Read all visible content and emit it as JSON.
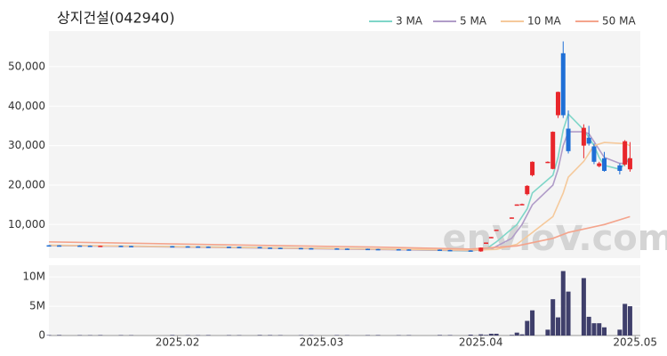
{
  "chart_data": {
    "type": "candlestick",
    "title": "상지건설(042940)",
    "watermark": "enVioV.com",
    "up_color": "#e8262b",
    "down_color": "#1f6fd6",
    "xlim": [
      7,
      122
    ],
    "xticks": [
      {
        "value": 32,
        "label": "2025.02"
      },
      {
        "value": 60,
        "label": "2025.03"
      },
      {
        "value": 91,
        "label": "2025.04"
      },
      {
        "value": 121,
        "label": "2025.05"
      }
    ],
    "ylim": [
      1500,
      59000
    ],
    "yticks": [
      {
        "value": 10000,
        "label": "10,000"
      },
      {
        "value": 20000,
        "label": "20,000"
      },
      {
        "value": 30000,
        "label": "30,000"
      },
      {
        "value": 40000,
        "label": "40,000"
      },
      {
        "value": 50000,
        "label": "50,000"
      }
    ],
    "grid": true,
    "legend": "top-right",
    "x": [
      7,
      9,
      13,
      15,
      17,
      21,
      23,
      31,
      34,
      36,
      38,
      42,
      44,
      48,
      50,
      52,
      56,
      58,
      63,
      65,
      69,
      71,
      75,
      77,
      83,
      85,
      89,
      91,
      92,
      93,
      94,
      97,
      98,
      99,
      100,
      101,
      104,
      105,
      106,
      107,
      108,
      111,
      112,
      113,
      114,
      115,
      118,
      119,
      120
    ],
    "open": [
      4750,
      4720,
      4680,
      4650,
      4600,
      4620,
      4570,
      4520,
      4480,
      4450,
      4400,
      4380,
      4350,
      4300,
      4150,
      4100,
      4050,
      4000,
      3950,
      3900,
      3850,
      3800,
      3750,
      3700,
      3650,
      3550,
      3450,
      3200,
      5300,
      6700,
      8500,
      11600,
      14800,
      15000,
      17700,
      22500,
      25700,
      24100,
      37700,
      53400,
      34300,
      30000,
      32000,
      29800,
      24800,
      26800,
      25000,
      25200,
      24000
    ],
    "high": [
      4800,
      4770,
      4730,
      4700,
      4670,
      4670,
      4620,
      4570,
      4530,
      4500,
      4450,
      4430,
      4400,
      4350,
      4200,
      4150,
      4100,
      4050,
      4000,
      3950,
      3900,
      3850,
      3800,
      3750,
      3700,
      3600,
      3500,
      4200,
      5450,
      6850,
      8700,
      11800,
      15100,
      15300,
      20000,
      26000,
      26000,
      33600,
      43700,
      56400,
      38900,
      35400,
      35000,
      30500,
      25900,
      28400,
      25500,
      31400,
      30900
    ],
    "low": [
      4670,
      4630,
      4600,
      4550,
      4550,
      4520,
      4470,
      4430,
      4400,
      4350,
      4330,
      4300,
      4250,
      4100,
      4050,
      4000,
      3950,
      3900,
      3850,
      3800,
      3750,
      3700,
      3650,
      3600,
      3500,
      3400,
      3250,
      3100,
      5300,
      6700,
      8500,
      11600,
      14800,
      15000,
      17400,
      22200,
      25600,
      24000,
      37000,
      37000,
      28000,
      26800,
      30000,
      25300,
      24500,
      23400,
      22700,
      24800,
      23400
    ],
    "close": [
      4720,
      4680,
      4650,
      4600,
      4620,
      4570,
      4520,
      4480,
      4450,
      4400,
      4380,
      4350,
      4300,
      4150,
      4100,
      4050,
      4000,
      3950,
      3900,
      3850,
      3800,
      3750,
      3700,
      3650,
      3550,
      3450,
      3300,
      4150,
      5450,
      6850,
      8700,
      11800,
      15100,
      15200,
      19800,
      25900,
      25900,
      33500,
      43600,
      37700,
      28600,
      34500,
      30500,
      25900,
      25500,
      23600,
      23600,
      31100,
      26800
    ],
    "series": [
      {
        "name": "3 MA",
        "color": "#7fd6c8",
        "x": [
          7,
          40,
          70,
          89,
          92,
          94,
          98,
          100,
          101,
          105,
          106,
          107,
          108,
          111,
          112,
          113,
          114,
          115,
          118,
          119,
          120
        ],
        "values": [
          4700,
          4300,
          3800,
          3300,
          3800,
          5600,
          10000,
          14000,
          18000,
          22500,
          27000,
          34000,
          38000,
          34000,
          32000,
          30000,
          27000,
          25000,
          24000,
          25500,
          27000
        ]
      },
      {
        "name": "5 MA",
        "color": "#b09cc8",
        "x": [
          7,
          89,
          93,
          97,
          99,
          101,
          105,
          106,
          107,
          108,
          111,
          112,
          113,
          114,
          115,
          118,
          119,
          120
        ],
        "values": [
          4700,
          3400,
          3800,
          6500,
          10000,
          15000,
          20000,
          24000,
          30000,
          33500,
          33500,
          33000,
          31000,
          29000,
          27000,
          25500,
          25500,
          26500
        ]
      },
      {
        "name": "10 MA",
        "color": "#f5c99b",
        "x": [
          7,
          89,
          94,
          98,
          101,
          105,
          107,
          108,
          111,
          112,
          113,
          115,
          119,
          120
        ],
        "values": [
          4800,
          3500,
          3700,
          5000,
          8000,
          12000,
          18000,
          22000,
          26000,
          28000,
          30000,
          30800,
          30500,
          30000
        ]
      },
      {
        "name": "50 MA",
        "color": "#f4a48c",
        "x": [
          7,
          40,
          70,
          89,
          98,
          105,
          108,
          115,
          120
        ],
        "values": [
          5600,
          4900,
          4300,
          3800,
          4600,
          6500,
          8000,
          10000,
          12000
        ]
      }
    ],
    "volume": {
      "color": "#3f3f6b",
      "ylim": [
        0,
        12000000
      ],
      "yticks": [
        0,
        {
          "value": 5000000,
          "label": "5M"
        },
        {
          "value": 10000000,
          "label": "10M"
        }
      ],
      "values": [
        80000,
        90000,
        70000,
        60000,
        80000,
        70000,
        60000,
        90000,
        70000,
        60000,
        80000,
        70000,
        60000,
        90000,
        80000,
        70000,
        60000,
        70000,
        80000,
        60000,
        70000,
        80000,
        60000,
        70000,
        90000,
        80000,
        150000,
        200000,
        100000,
        300000,
        300000,
        100000,
        500000,
        200000,
        2500000,
        4300000,
        1000000,
        6200000,
        3100000,
        11000000,
        7500000,
        9800000,
        3200000,
        2100000,
        2100000,
        1400000,
        1000000,
        5400000,
        5000000
      ]
    }
  }
}
